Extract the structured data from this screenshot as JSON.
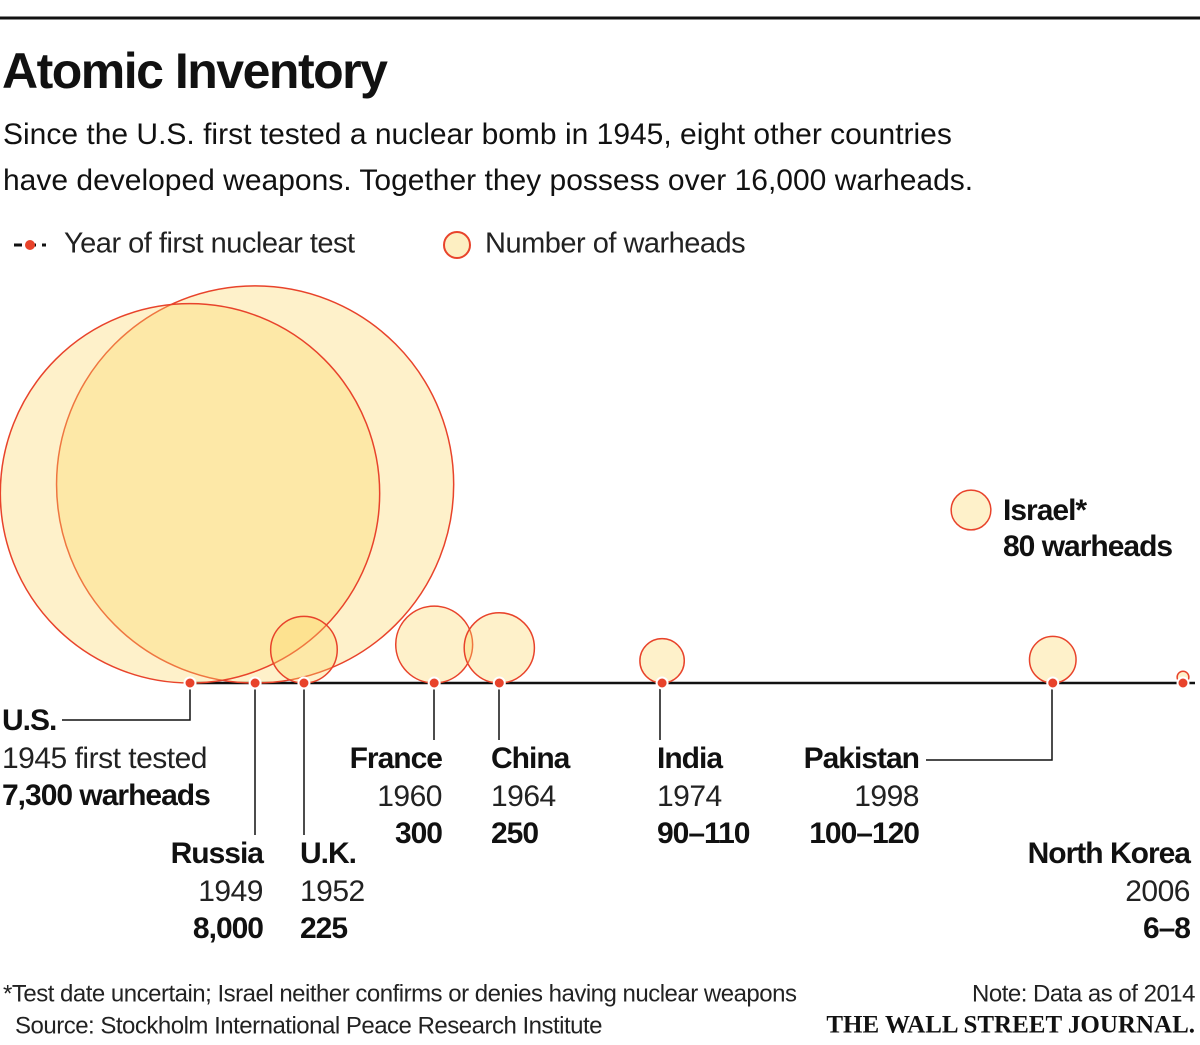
{
  "chart_data": {
    "type": "bubble",
    "title": "Atomic Inventory",
    "subtitle": [
      "Since the U.S. first tested a nuclear bomb in 1945, eight other countries",
      "have developed weapons. Together they possess over 16,000 warheads."
    ],
    "legend": {
      "line": "Year of first nuclear test",
      "bubble": "Number of warheads"
    },
    "categories": [
      "U.S.",
      "Russia",
      "U.K.",
      "France",
      "China",
      "India",
      "Pakistan",
      "Israel*",
      "North Korea"
    ],
    "x": [
      {
        "value": 1945,
        "label": "1945 first tested"
      },
      1949,
      1952,
      1960,
      1964,
      1974,
      1998,
      null,
      2006
    ],
    "values": [
      7300,
      8000,
      225,
      300,
      250,
      100,
      110,
      80,
      7
    ],
    "value_labels": [
      "7,300 warheads",
      "8,000",
      "225",
      "300",
      "250",
      "90–110",
      "100–120",
      "80 warheads",
      "6–8"
    ],
    "xlim": [
      1945,
      2006
    ],
    "color": "#fbd766",
    "edge_color": "#e8432b",
    "footnote": "*Test date uncertain; Israel neither confirms or denies having nuclear weapons",
    "note": "Note: Data as of 2014",
    "source": "Source: Stockholm International Peace Research Institute",
    "credit": "THE WALL STREET JOURNAL."
  }
}
